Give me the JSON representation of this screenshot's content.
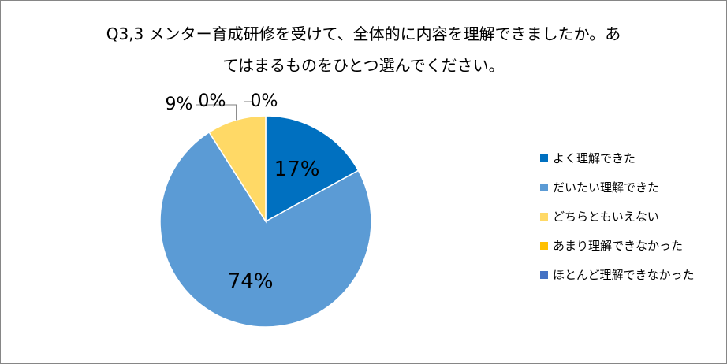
{
  "chart_data": {
    "type": "pie",
    "title": {
      "line1": "Q3,3 メンター育成研修を受けて、全体的に内容を理解できましたか。あ",
      "line2": "てはまるものをひとつ選んでください。"
    },
    "categories": [
      "よく理解できた",
      "だいたい理解できた",
      "どちらともいえない",
      "あまり理解できなかった",
      "ほとんど理解できなかった"
    ],
    "values": [
      17,
      74,
      9,
      0,
      0
    ],
    "data_labels": [
      "17%",
      "74%",
      "9%",
      "0%",
      "0%"
    ],
    "colors": [
      "#0070c0",
      "#5b9bd5",
      "#ffd966",
      "#ffc000",
      "#4472c4"
    ],
    "legend_position": "right"
  }
}
